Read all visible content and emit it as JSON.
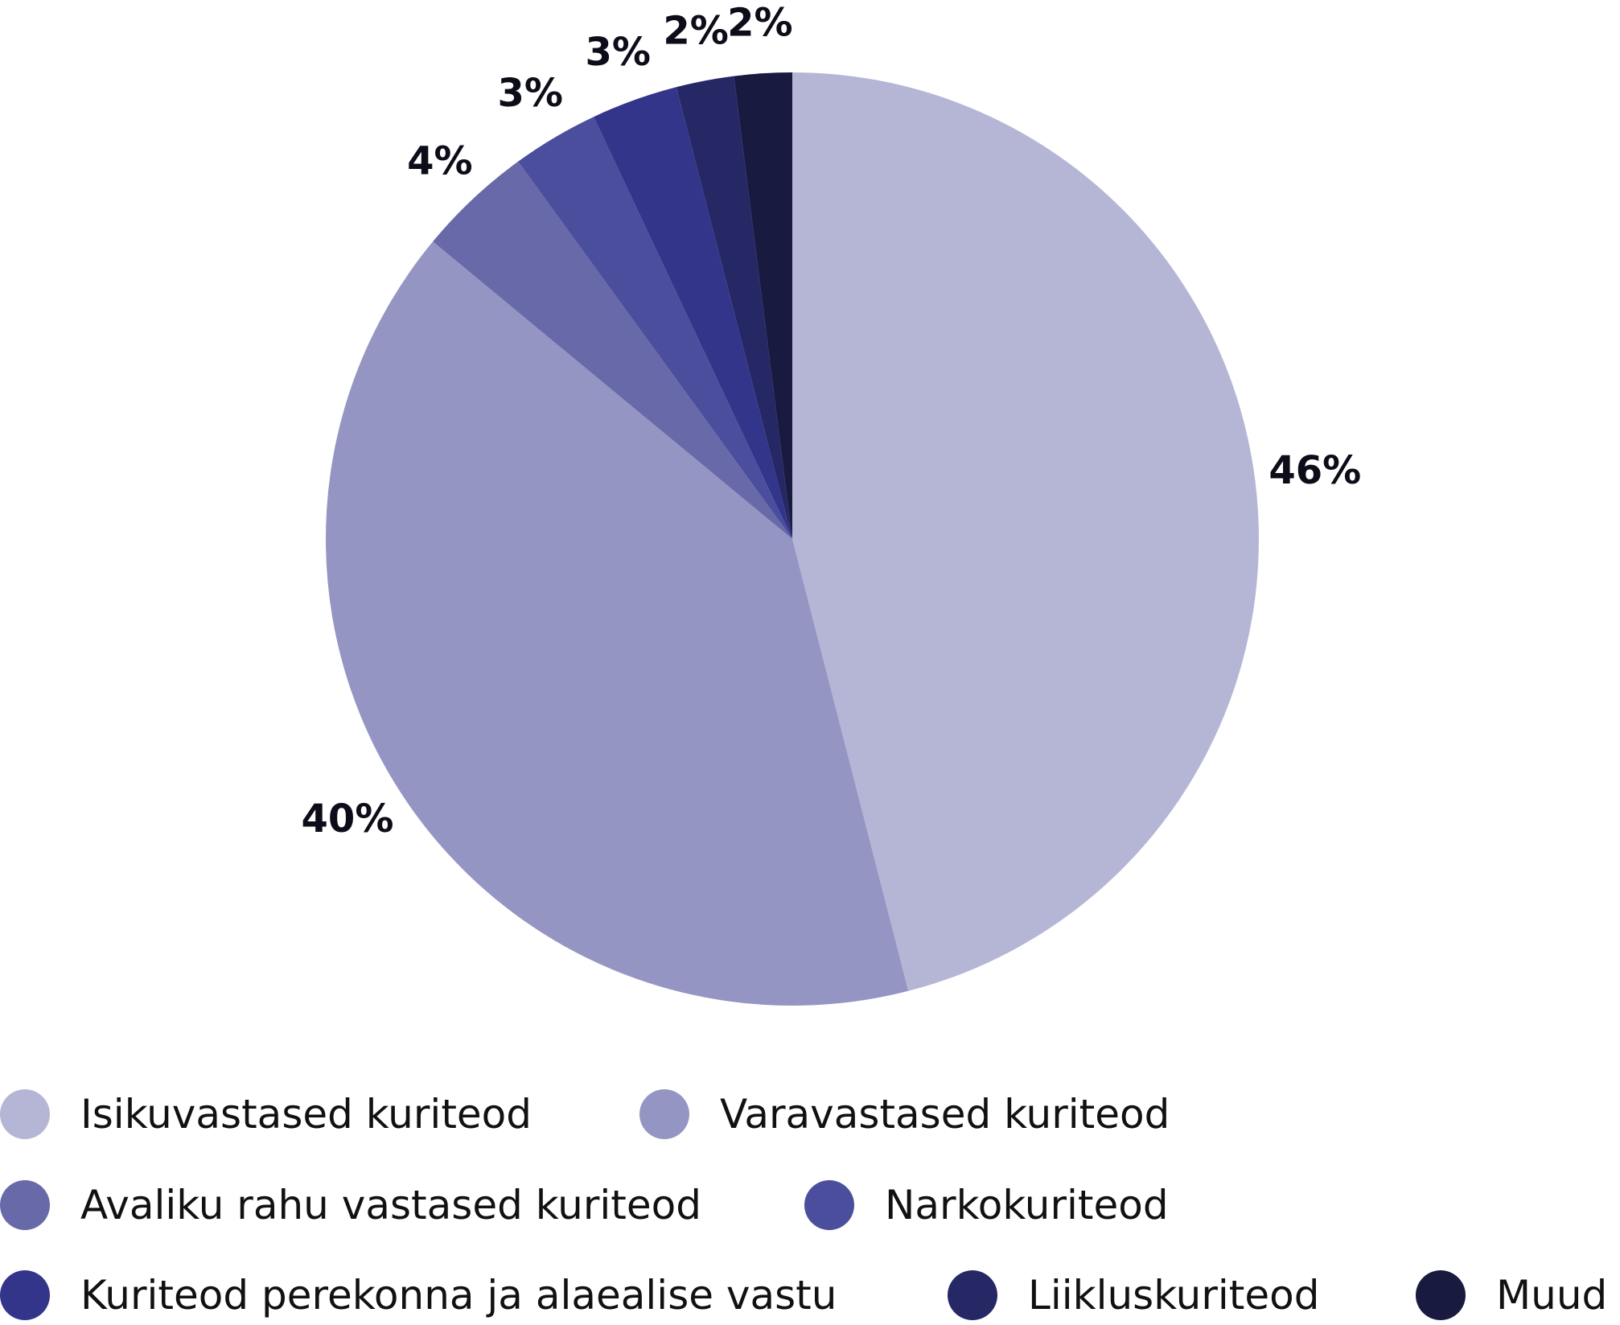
{
  "chart_data": {
    "type": "pie",
    "title": "",
    "start_angle_deg": 0,
    "direction": "clockwise",
    "legend_position": "bottom",
    "slices": [
      {
        "name": "Isikuvastased kuriteod",
        "value": 46,
        "label": "46%",
        "color": "#b5b6d6"
      },
      {
        "name": "Varavastased kuriteod",
        "value": 40,
        "label": "40%",
        "color": "#9495c3"
      },
      {
        "name": "Avaliku rahu vastased kuriteod",
        "value": 4,
        "label": "4%",
        "color": "#6869a9"
      },
      {
        "name": "Narkokuriteod",
        "value": 3,
        "label": "3%",
        "color": "#4b4e9d"
      },
      {
        "name": "Kuriteod perekonna ja alaealise vastu",
        "value": 3,
        "label": "3%",
        "color": "#33358b"
      },
      {
        "name": "Liikluskuriteod",
        "value": 2,
        "label": "2%",
        "color": "#262865"
      },
      {
        "name": "Muud",
        "value": 2,
        "label": "2%",
        "color": "#181a40"
      }
    ]
  }
}
